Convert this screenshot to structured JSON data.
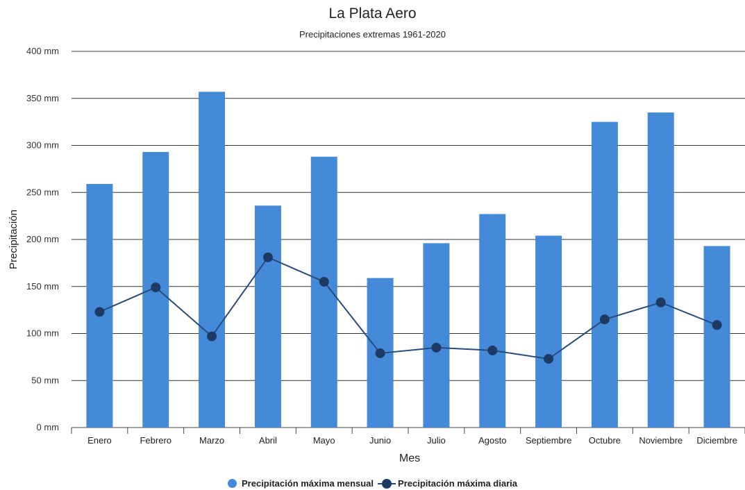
{
  "title": "La Plata Aero",
  "subtitle": "Precipitaciones extremas 1961-2020",
  "colors": {
    "bar": "#4589D9",
    "line": "#284B7B",
    "marker": "#1C3A63"
  },
  "chart_data": {
    "type": "bar",
    "title": "La Plata Aero",
    "subtitle": "Precipitaciones extremas 1961-2020",
    "xlabel": "Mes",
    "ylabel": "Precipitación",
    "y_unit": "mm",
    "ylim": [
      0,
      400
    ],
    "yticks": [
      0,
      50,
      100,
      150,
      200,
      250,
      300,
      350,
      400
    ],
    "ytick_labels": [
      "0 mm",
      "50 mm",
      "100 mm",
      "150 mm",
      "200 mm",
      "250 mm",
      "300 mm",
      "350 mm",
      "400 mm"
    ],
    "grid": true,
    "legend_position": "bottom",
    "categories": [
      "Enero",
      "Febrero",
      "Marzo",
      "Abril",
      "Mayo",
      "Junio",
      "Julio",
      "Agosto",
      "Septiembre",
      "Octubre",
      "Noviembre",
      "Diciembre"
    ],
    "series": [
      {
        "name": "Precipitación máxima mensual",
        "type": "bar",
        "values": [
          259,
          293,
          357,
          236,
          288,
          159,
          196,
          227,
          204,
          325,
          335,
          193
        ]
      },
      {
        "name": "Precipitación máxima diaria",
        "type": "line",
        "values": [
          123,
          149,
          97,
          181,
          155,
          79,
          85,
          82,
          73,
          115,
          133,
          109
        ]
      }
    ]
  }
}
